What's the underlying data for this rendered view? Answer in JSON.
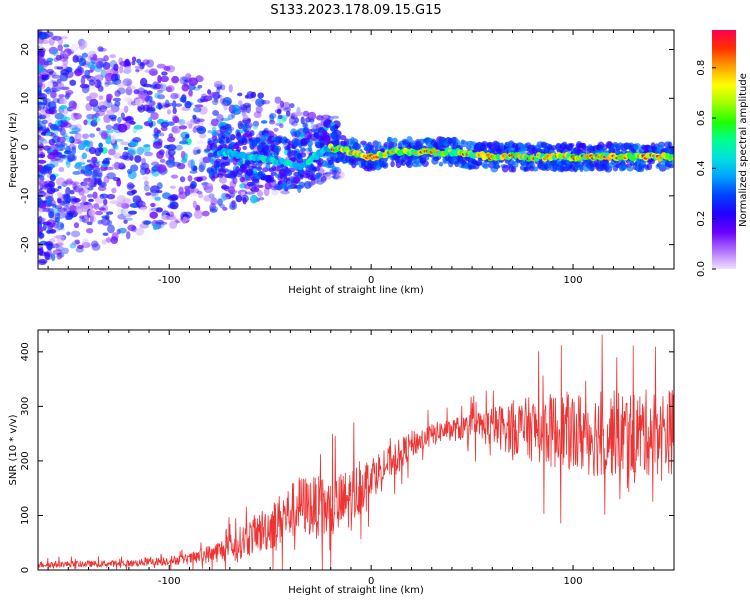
{
  "title": "S133.2023.178.09.15.G15",
  "chart_data": [
    {
      "type": "heatmap",
      "xlabel": "Height of straight line (km)",
      "ylabel": "Frequency (Hz)",
      "xlim": [
        -165,
        150
      ],
      "ylim": [
        -25,
        24
      ],
      "xticks": [
        -100,
        0,
        100
      ],
      "yticks": [
        -20,
        -10,
        0,
        10,
        20
      ],
      "colorbar": {
        "label": "Normalized spectral amplitude",
        "range": [
          0.0,
          0.95
        ],
        "ticks": [
          "0.0",
          "0.2",
          "0.4",
          "0.6",
          "0.8"
        ],
        "colors": [
          "#f0e0ff",
          "#b070ff",
          "#6a00ff",
          "#2200ff",
          "#0040ff",
          "#00a0ff",
          "#00e0e0",
          "#00ff90",
          "#20ff00",
          "#a0ff00",
          "#ffff00",
          "#ffa000",
          "#ff3000",
          "#ff0050"
        ]
      },
      "ridge": {
        "description_points_x": [
          -75,
          -60,
          -45,
          -35,
          -28,
          -20,
          -10,
          0,
          10,
          20,
          40,
          60,
          80,
          100,
          120,
          140,
          150
        ],
        "description_points_y": [
          -1,
          -2,
          -3,
          -4,
          -2,
          0,
          -1,
          -2,
          -1,
          -1,
          -1,
          -2,
          -2,
          -2,
          -2,
          -2,
          -2
        ]
      }
    },
    {
      "type": "line",
      "xlabel": "Height of straight line (km)",
      "ylabel": "SNR (10 * v/v)",
      "xlim": [
        -165,
        150
      ],
      "ylim": [
        0,
        440
      ],
      "xticks": [
        -100,
        0,
        100
      ],
      "yticks": [
        0,
        100,
        200,
        300,
        400
      ],
      "series_color": "#ee3333",
      "trend_x": [
        -165,
        -120,
        -90,
        -70,
        -50,
        -35,
        -20,
        -10,
        0,
        10,
        20,
        35,
        50,
        70,
        90,
        110,
        130,
        150
      ],
      "trend_y": [
        10,
        12,
        20,
        40,
        80,
        120,
        110,
        130,
        175,
        200,
        230,
        255,
        262,
        262,
        255,
        250,
        250,
        255
      ],
      "spread_y": [
        6,
        6,
        10,
        25,
        45,
        55,
        60,
        60,
        35,
        30,
        25,
        20,
        25,
        50,
        70,
        80,
        80,
        80
      ]
    }
  ]
}
